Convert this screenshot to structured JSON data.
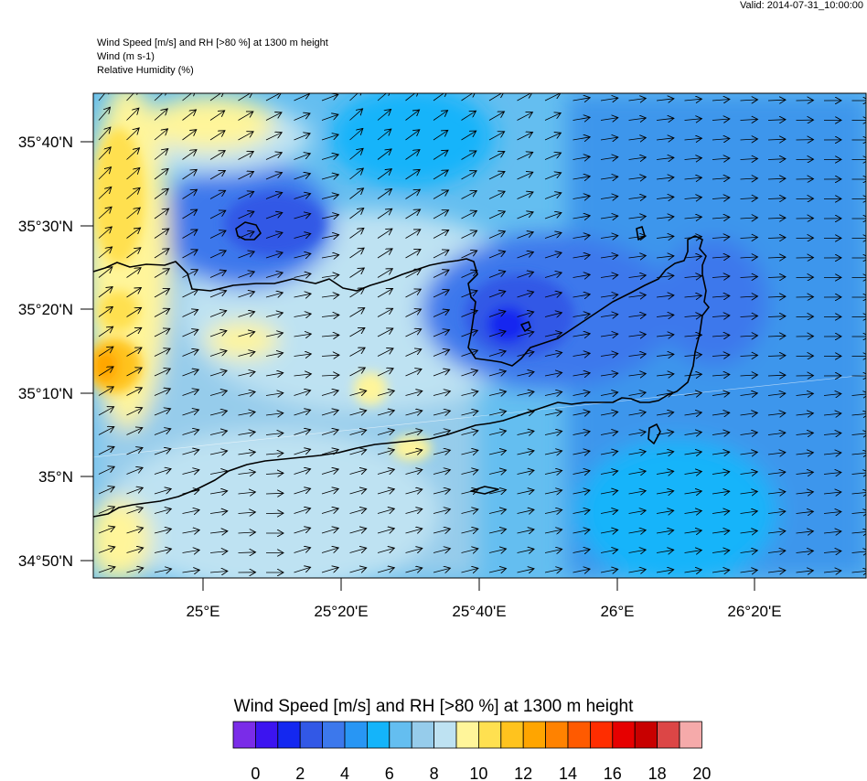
{
  "header": {
    "valid": "Valid: 2014-07-31_10:00:00",
    "line1": "Wind Speed [m/s] and RH [>80 %] at 1300 m height",
    "line2": "Wind   (m s-1)",
    "line3": "Relative Humidity   (%)"
  },
  "map": {
    "lat_labels": [
      "35°40'N",
      "35°30'N",
      "35°20'N",
      "35°10'N",
      "35°N",
      "34°50'N"
    ],
    "lon_labels": [
      "25°E",
      "25°20'E",
      "25°40'E",
      "26°E",
      "26°20'E"
    ]
  },
  "colorbar": {
    "title": "Wind Speed [m/s] and RH [>80 %] at 1300 m height",
    "colors": [
      "#7a2ce8",
      "#3c14f0",
      "#1428f0",
      "#3258e6",
      "#3c78ec",
      "#2896f4",
      "#14b4fa",
      "#64bef0",
      "#96cceb",
      "#bee2f2",
      "#fff59a",
      "#ffe050",
      "#ffc31e",
      "#ffa500",
      "#ff8200",
      "#ff5a00",
      "#ff2d00",
      "#e60000",
      "#c80000",
      "#dc4646",
      "#f5aaaa"
    ],
    "tick_labels": [
      "0",
      "2",
      "4",
      "6",
      "8",
      "10",
      "12",
      "14",
      "16",
      "18",
      "20"
    ]
  }
}
